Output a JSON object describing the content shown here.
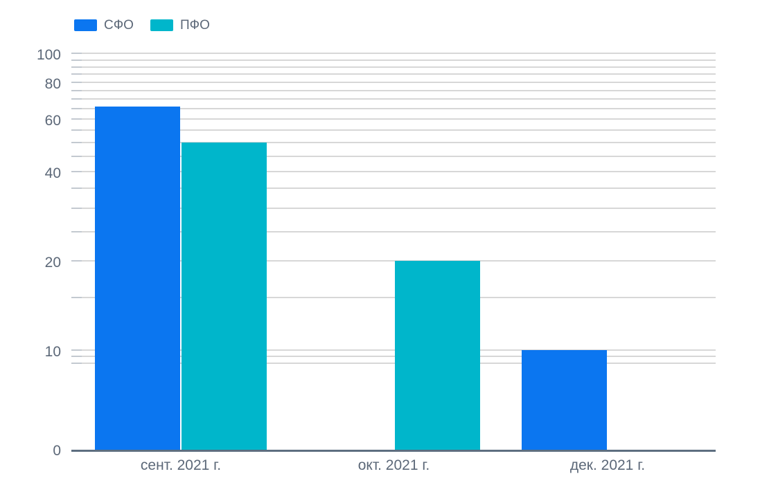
{
  "chart_data": {
    "type": "bar",
    "scale": "log",
    "title": "",
    "categories": [
      "сент. 2021 г.",
      "окт. 2021 г.",
      "дек. 2021 г."
    ],
    "series": [
      {
        "key": "sfo",
        "name": "СФО",
        "color": "#0b76f0",
        "values": [
          66,
          0,
          10
        ]
      },
      {
        "key": "pfo",
        "name": "ПФО",
        "color": "#00b6cb",
        "values": [
          50,
          20,
          0
        ]
      }
    ],
    "y_tick_labels": [
      "100",
      "80",
      "60",
      "40",
      "20",
      "10",
      "0"
    ],
    "y_tick_values": [
      100,
      80,
      60,
      40,
      20,
      10,
      0
    ],
    "gridline_values": [
      100,
      95,
      90,
      85,
      80,
      75,
      70,
      65,
      60,
      55,
      50,
      45,
      40,
      35,
      30,
      25,
      20,
      15,
      10,
      9.5,
      9
    ],
    "ylim": [
      9,
      100
    ],
    "grid": true,
    "legend_position": "top-left",
    "colors": {
      "grid": "#d7d7d7",
      "tick": "#c3c9d0",
      "axis": "#5d6e80",
      "text": "#5c6878"
    }
  }
}
